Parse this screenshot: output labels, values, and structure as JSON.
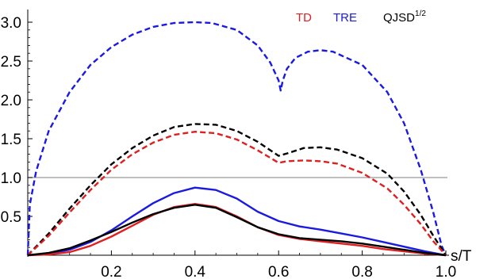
{
  "chart_data": {
    "type": "line",
    "title": "",
    "xlabel": "s/T",
    "ylabel": "",
    "xlim": [
      0,
      1
    ],
    "ylim": [
      0,
      3.1
    ],
    "x_ticks": [
      0.2,
      0.4,
      0.6,
      0.8,
      1.0
    ],
    "x_tick_labels": [
      "0.2",
      "0.4",
      "0.6",
      "0.8",
      "1.0"
    ],
    "y_ticks": [
      0.5,
      1.0,
      1.5,
      2.0,
      2.5,
      3.0
    ],
    "y_tick_labels": [
      "0.5",
      "1.0",
      "1.5",
      "2.0",
      "2.5",
      "3.0"
    ],
    "reference_line": {
      "y": 1.0,
      "color": "#999999"
    },
    "legend": {
      "placement": "top-right",
      "entries": [
        {
          "text": "TD",
          "color": "#e02020"
        },
        {
          "text": "TRE",
          "color": "#1a1ae0"
        },
        {
          "text": "QJSD",
          "superscript": "1/2",
          "color": "#000000"
        }
      ]
    },
    "series": [
      {
        "color": "#1a1ae0",
        "style": "dashed",
        "x": [
          0,
          0.005,
          0.02,
          0.05,
          0.1,
          0.15,
          0.2,
          0.25,
          0.3,
          0.35,
          0.4,
          0.44,
          0.5,
          0.55,
          0.58,
          0.6,
          0.605,
          0.61,
          0.62,
          0.64,
          0.67,
          0.7,
          0.73,
          0.8,
          0.86,
          0.9,
          0.94,
          0.97,
          0.99,
          1.0
        ],
        "y": [
          0,
          0.65,
          1.08,
          1.6,
          2.1,
          2.45,
          2.68,
          2.84,
          2.94,
          2.99,
          3.0,
          2.99,
          2.9,
          2.7,
          2.48,
          2.25,
          2.12,
          2.25,
          2.4,
          2.54,
          2.62,
          2.64,
          2.62,
          2.45,
          2.1,
          1.7,
          1.1,
          0.55,
          0.12,
          0
        ]
      },
      {
        "color": "#000000",
        "style": "dashed",
        "x": [
          0,
          0.05,
          0.1,
          0.15,
          0.2,
          0.25,
          0.3,
          0.35,
          0.4,
          0.45,
          0.5,
          0.55,
          0.6,
          0.62,
          0.66,
          0.7,
          0.74,
          0.8,
          0.86,
          0.9,
          0.94,
          0.97,
          1.0
        ],
        "y": [
          0,
          0.28,
          0.6,
          0.9,
          1.17,
          1.38,
          1.54,
          1.65,
          1.69,
          1.68,
          1.6,
          1.46,
          1.28,
          1.31,
          1.38,
          1.39,
          1.36,
          1.25,
          1.05,
          0.82,
          0.52,
          0.25,
          0
        ]
      },
      {
        "color": "#e02020",
        "style": "dashed",
        "x": [
          0,
          0.05,
          0.1,
          0.15,
          0.2,
          0.25,
          0.3,
          0.35,
          0.4,
          0.45,
          0.5,
          0.55,
          0.6,
          0.62,
          0.66,
          0.7,
          0.74,
          0.8,
          0.86,
          0.9,
          0.94,
          0.97,
          1.0
        ],
        "y": [
          0,
          0.25,
          0.55,
          0.84,
          1.1,
          1.3,
          1.45,
          1.55,
          1.59,
          1.57,
          1.49,
          1.35,
          1.19,
          1.21,
          1.22,
          1.21,
          1.18,
          1.06,
          0.86,
          0.65,
          0.4,
          0.18,
          0
        ]
      },
      {
        "color": "#1a1ae0",
        "style": "solid",
        "x": [
          0,
          0.05,
          0.1,
          0.15,
          0.2,
          0.25,
          0.3,
          0.35,
          0.4,
          0.45,
          0.5,
          0.55,
          0.6,
          0.65,
          0.7,
          0.75,
          0.8,
          0.85,
          0.9,
          0.95,
          1.0
        ],
        "y": [
          0,
          0.02,
          0.07,
          0.17,
          0.32,
          0.5,
          0.67,
          0.8,
          0.87,
          0.84,
          0.73,
          0.56,
          0.44,
          0.37,
          0.33,
          0.28,
          0.23,
          0.17,
          0.11,
          0.05,
          0
        ]
      },
      {
        "color": "#e02020",
        "style": "solid",
        "x": [
          0,
          0.05,
          0.1,
          0.15,
          0.2,
          0.25,
          0.3,
          0.35,
          0.4,
          0.45,
          0.5,
          0.55,
          0.6,
          0.65,
          0.7,
          0.75,
          0.8,
          0.85,
          0.9,
          0.95,
          1.0
        ],
        "y": [
          0,
          0.01,
          0.04,
          0.12,
          0.24,
          0.38,
          0.52,
          0.62,
          0.66,
          0.62,
          0.5,
          0.36,
          0.26,
          0.21,
          0.18,
          0.15,
          0.12,
          0.08,
          0.05,
          0.02,
          0
        ]
      },
      {
        "color": "#000000",
        "style": "solid",
        "x": [
          0,
          0.05,
          0.1,
          0.15,
          0.2,
          0.25,
          0.3,
          0.35,
          0.4,
          0.45,
          0.5,
          0.55,
          0.6,
          0.65,
          0.7,
          0.75,
          0.8,
          0.85,
          0.9,
          0.95,
          1.0
        ],
        "y": [
          0,
          0.03,
          0.09,
          0.19,
          0.3,
          0.42,
          0.53,
          0.61,
          0.65,
          0.61,
          0.49,
          0.36,
          0.27,
          0.22,
          0.2,
          0.18,
          0.15,
          0.11,
          0.07,
          0.03,
          0
        ]
      }
    ]
  }
}
